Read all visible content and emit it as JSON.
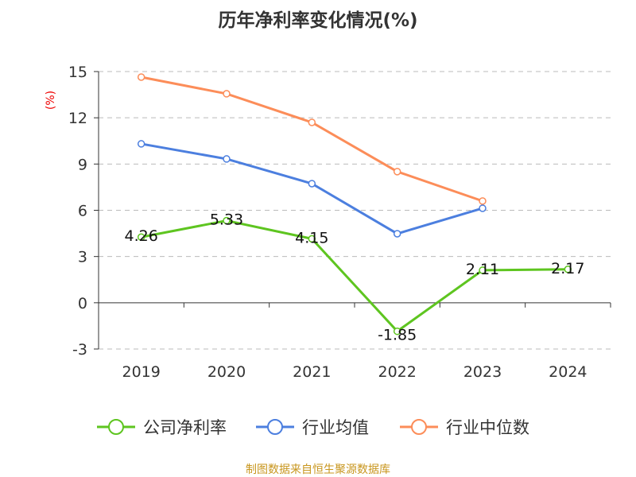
{
  "chart_data": {
    "type": "line",
    "title": "历年净利率变化情况(%)",
    "ylabel": "(%)",
    "categories": [
      "2019",
      "2020",
      "2021",
      "2022",
      "2023",
      "2024"
    ],
    "ylim": [
      -3,
      15
    ],
    "yticks": [
      15,
      12,
      9,
      6,
      3,
      0,
      -3
    ],
    "grid": true,
    "legend_position": "bottom",
    "series": [
      {
        "name": "公司净利率",
        "color": "#5ec520",
        "values": [
          4.26,
          5.33,
          4.15,
          -1.85,
          2.11,
          2.17
        ],
        "labels": [
          "4.26",
          "5.33",
          "4.15",
          "-1.85",
          "2.11",
          "2.17"
        ]
      },
      {
        "name": "行业均值",
        "color": "#4c7fdf",
        "values": [
          10.31,
          9.33,
          7.73,
          4.48,
          6.13,
          null
        ]
      },
      {
        "name": "行业中位数",
        "color": "#fc8d59",
        "values": [
          14.64,
          13.56,
          11.7,
          8.51,
          6.6,
          null
        ]
      }
    ],
    "source": "制图数据来自恒生聚源数据库"
  }
}
